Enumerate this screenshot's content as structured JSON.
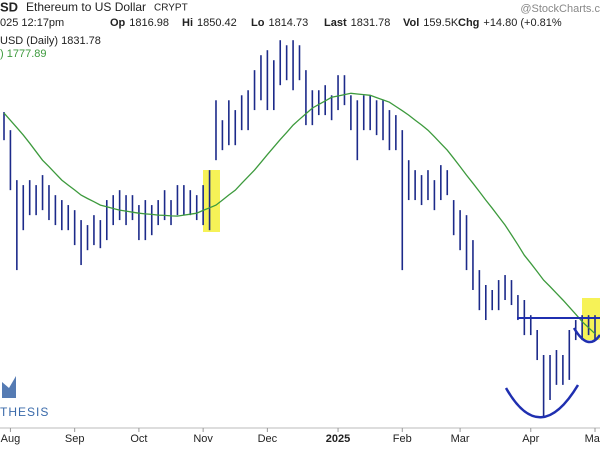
{
  "chart_data": {
    "type": "ohlc",
    "symbol": "SD",
    "title": "Ethereum to US Dollar",
    "exchange": "CRYPT",
    "timestamp": "025 12:17pm",
    "watermark": "@StockCharts.c",
    "quote": [
      {
        "label": "Op",
        "value": 1816.98
      },
      {
        "label": "Hi",
        "value": 1850.42
      },
      {
        "label": "Lo",
        "value": 1814.73
      },
      {
        "label": "Last",
        "value": 1831.78
      },
      {
        "label": "Vol",
        "value": "159.5K"
      },
      {
        "label": "Chg",
        "value": "+14.80 (+0.81%"
      }
    ],
    "price_legend": "USD (Daily) 1831.78",
    "ma_legend": ") 1777.89",
    "logo_text": "THESIS",
    "log_scale": true,
    "ylim": [
      1350,
      4300
    ],
    "bar_color": "#1c2a8a",
    "ma_color": "#3d9a3d",
    "categories": [
      null,
      "Aug",
      null,
      null,
      null,
      null,
      null,
      null,
      null,
      null,
      null,
      "Sep",
      null,
      null,
      null,
      null,
      null,
      null,
      null,
      null,
      null,
      "Oct",
      null,
      null,
      null,
      null,
      null,
      null,
      null,
      null,
      null,
      "Nov",
      null,
      null,
      null,
      null,
      null,
      null,
      null,
      null,
      null,
      "Dec",
      null,
      null,
      null,
      null,
      null,
      null,
      null,
      null,
      null,
      null,
      "2025",
      null,
      null,
      null,
      null,
      null,
      null,
      null,
      null,
      null,
      "Feb",
      null,
      null,
      null,
      null,
      null,
      null,
      null,
      null,
      "Mar",
      null,
      null,
      null,
      null,
      null,
      null,
      null,
      null,
      null,
      null,
      "Apr",
      null,
      null,
      null,
      null,
      null,
      null,
      null,
      null,
      null,
      "May"
    ],
    "high": [
      3352,
      3183,
      2759,
      2720,
      2759,
      2720,
      2799,
      2720,
      2643,
      2606,
      2569,
      2532,
      2461,
      2426,
      2496,
      2461,
      2606,
      2643,
      2681,
      2643,
      2643,
      2569,
      2606,
      2569,
      2606,
      2681,
      2606,
      2720,
      2720,
      2681,
      2643,
      2720,
      2839,
      3467,
      3275,
      3467,
      3371,
      3517,
      3568,
      3779,
      3944,
      4001,
      3888,
      4117,
      4058,
      4117,
      4058,
      3779,
      3568,
      3568,
      3620,
      3517,
      3725,
      3725,
      3517,
      3467,
      3517,
      3517,
      3467,
      3467,
      3371,
      3323,
      3183,
      2921,
      2839,
      2799,
      2839,
      2759,
      2880,
      2839,
      2606,
      2532,
      2496,
      2324,
      2133,
      2044,
      2015,
      2073,
      2103,
      2073,
      1986,
      1958,
      1875,
      1797,
      1673,
      1673,
      1697,
      1673,
      1797,
      1849,
      1875,
      1875,
      1875
    ],
    "low": [
      3093,
      2681,
      2133,
      2391,
      2496,
      2496,
      2532,
      2461,
      2426,
      2391,
      2391,
      2291,
      2164,
      2258,
      2291,
      2271,
      2324,
      2426,
      2461,
      2426,
      2461,
      2324,
      2324,
      2357,
      2426,
      2461,
      2426,
      2496,
      2496,
      2496,
      2461,
      2426,
      2391,
      2921,
      3006,
      3049,
      3049,
      3183,
      3183,
      3371,
      3467,
      3371,
      3371,
      3620,
      3672,
      3568,
      3672,
      3229,
      3229,
      3323,
      3323,
      3275,
      3371,
      3419,
      3183,
      2921,
      3183,
      3183,
      3138,
      3093,
      3006,
      3006,
      2133,
      2606,
      2606,
      2569,
      2606,
      2532,
      2606,
      2643,
      2357,
      2258,
      2133,
      2015,
      1902,
      1849,
      1902,
      1902,
      1958,
      1930,
      1849,
      1771,
      1771,
      1649,
      1397,
      1471,
      1536,
      1536,
      1558,
      1746,
      1746,
      1771,
      1746
    ],
    "ma": [
      3342,
      3274,
      3206,
      3138,
      3066,
      2993,
      2921,
      2867,
      2813,
      2759,
      2720,
      2682,
      2643,
      2618,
      2594,
      2569,
      2557,
      2544,
      2532,
      2525,
      2517,
      2510,
      2505,
      2501,
      2496,
      2494,
      2491,
      2489,
      2496,
      2503,
      2510,
      2530,
      2549,
      2569,
      2606,
      2644,
      2681,
      2734,
      2786,
      2839,
      2903,
      2968,
      3032,
      3098,
      3163,
      3229,
      3283,
      3336,
      3390,
      3426,
      3461,
      3497,
      3510,
      3524,
      3537,
      3530,
      3524,
      3517,
      3494,
      3471,
      3448,
      3406,
      3365,
      3323,
      3276,
      3230,
      3183,
      3124,
      3065,
      3006,
      2937,
      2868,
      2799,
      2735,
      2670,
      2606,
      2546,
      2486,
      2426,
      2359,
      2293,
      2226,
      2175,
      2124,
      2073,
      2035,
      1996,
      1958,
      1919,
      1880,
      1840,
      1809,
      1778
    ]
  }
}
